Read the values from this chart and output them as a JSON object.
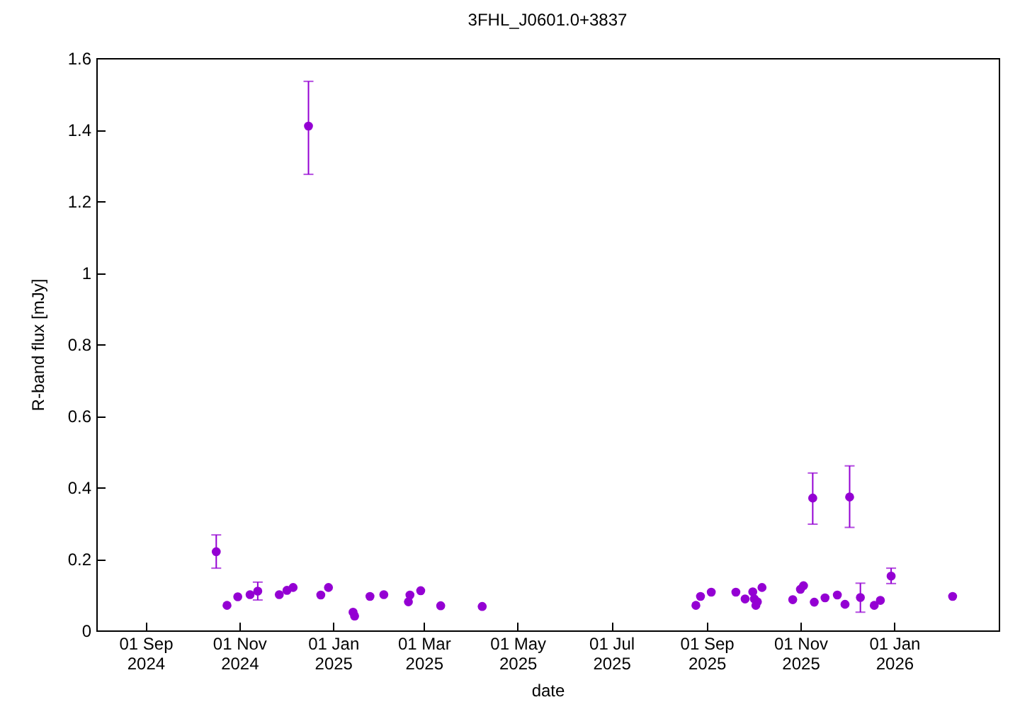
{
  "chart_data": {
    "type": "scatter",
    "title": "3FHL_J0601.0+3837",
    "xlabel": "date",
    "ylabel": "R-band flux [mJy]",
    "x": [
      "2024-10-17",
      "2024-10-24",
      "2024-10-31",
      "2024-11-08",
      "2024-11-13",
      "2024-11-27",
      "2024-12-02",
      "2024-12-06",
      "2024-12-16",
      "2024-12-24",
      "2024-12-29",
      "2025-01-14",
      "2025-01-15",
      "2025-01-25",
      "2025-02-03",
      "2025-02-19",
      "2025-02-20",
      "2025-02-27",
      "2025-03-12",
      "2025-04-08",
      "2025-08-25",
      "2025-08-28",
      "2025-09-04",
      "2025-09-20",
      "2025-09-26",
      "2025-10-01",
      "2025-10-02",
      "2025-10-03",
      "2025-10-04",
      "2025-10-07",
      "2025-10-27",
      "2025-11-01",
      "2025-11-03",
      "2025-11-09",
      "2025-11-10",
      "2025-11-17",
      "2025-11-25",
      "2025-11-30",
      "2025-12-03",
      "2025-12-10",
      "2025-12-19",
      "2025-12-23",
      "2025-12-30",
      "2026-02-08"
    ],
    "series": [
      {
        "color": "#9400d3",
        "values": [
          0.22,
          0.07,
          0.094,
          0.1,
          0.11,
          0.1,
          0.112,
          0.12,
          1.41,
          0.099,
          0.12,
          0.051,
          0.04,
          0.095,
          0.1,
          0.08,
          0.099,
          0.111,
          0.069,
          0.067,
          0.07,
          0.095,
          0.107,
          0.107,
          0.088,
          0.108,
          0.088,
          0.07,
          0.08,
          0.12,
          0.086,
          0.115,
          0.125,
          0.37,
          0.079,
          0.091,
          0.099,
          0.073,
          0.373,
          0.092,
          0.07,
          0.084,
          0.152,
          0.095
        ],
        "errors": [
          [
            0.174,
            0.267
          ],
          null,
          null,
          null,
          [
            0.085,
            0.135
          ],
          null,
          null,
          null,
          [
            1.275,
            1.535
          ],
          null,
          null,
          null,
          null,
          null,
          null,
          null,
          null,
          null,
          null,
          null,
          null,
          null,
          null,
          null,
          null,
          null,
          null,
          null,
          null,
          null,
          null,
          null,
          null,
          [
            0.297,
            0.44
          ],
          null,
          null,
          null,
          null,
          [
            0.288,
            0.46
          ],
          [
            0.051,
            0.132
          ],
          null,
          null,
          [
            0.131,
            0.174
          ],
          null
        ]
      }
    ],
    "marker": "circle",
    "xlim": [
      "2024-07-31",
      "2026-03-10"
    ],
    "xticks": [
      {
        "value": "2024-09-01",
        "label": "01 Sep 2024"
      },
      {
        "value": "2024-11-01",
        "label": "01 Nov 2024"
      },
      {
        "value": "2025-01-01",
        "label": "01 Jan 2025"
      },
      {
        "value": "2025-03-01",
        "label": "01 Mar 2025"
      },
      {
        "value": "2025-05-01",
        "label": "01 May 2025"
      },
      {
        "value": "2025-07-01",
        "label": "01 Jul 2025"
      },
      {
        "value": "2025-09-01",
        "label": "01 Sep 2025"
      },
      {
        "value": "2025-11-01",
        "label": "01 Nov 2025"
      },
      {
        "value": "2026-01-01",
        "label": "01 Jan 2026"
      }
    ],
    "ylim": [
      0,
      1.6
    ],
    "yticks": [
      0,
      0.2,
      0.4,
      0.6,
      0.8,
      1,
      1.2,
      1.4,
      1.6
    ]
  }
}
